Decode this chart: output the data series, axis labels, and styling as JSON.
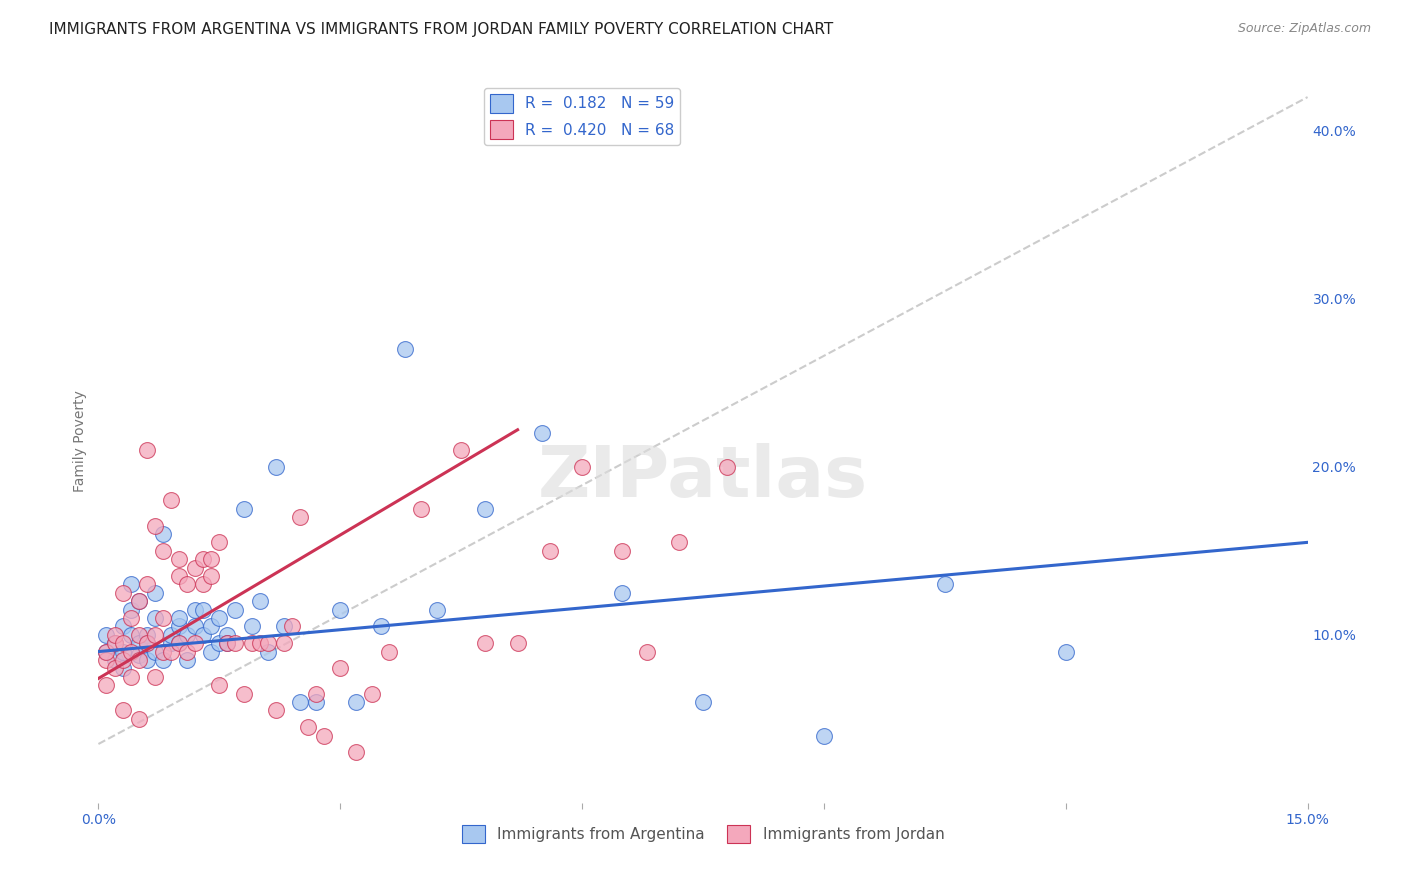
{
  "title": "IMMIGRANTS FROM ARGENTINA VS IMMIGRANTS FROM JORDAN FAMILY POVERTY CORRELATION CHART",
  "source": "Source: ZipAtlas.com",
  "ylabel": "Family Poverty",
  "ylabel_right_ticks": [
    "10.0%",
    "20.0%",
    "30.0%",
    "40.0%"
  ],
  "ylabel_right_vals": [
    0.1,
    0.2,
    0.3,
    0.4
  ],
  "xlim": [
    0.0,
    0.15
  ],
  "ylim": [
    0.0,
    0.43
  ],
  "R_argentina": 0.182,
  "N_argentina": 59,
  "R_jordan": 0.42,
  "N_jordan": 68,
  "color_argentina": "#A8C8F0",
  "color_jordan": "#F4A8BC",
  "trendline_color_argentina": "#3366CC",
  "trendline_color_jordan": "#CC3355",
  "scatter_argentina_x": [
    0.001,
    0.001,
    0.002,
    0.002,
    0.003,
    0.003,
    0.003,
    0.004,
    0.004,
    0.004,
    0.005,
    0.005,
    0.005,
    0.006,
    0.006,
    0.006,
    0.007,
    0.007,
    0.007,
    0.008,
    0.008,
    0.009,
    0.009,
    0.01,
    0.01,
    0.01,
    0.011,
    0.011,
    0.012,
    0.012,
    0.013,
    0.013,
    0.014,
    0.014,
    0.015,
    0.015,
    0.016,
    0.016,
    0.017,
    0.018,
    0.019,
    0.02,
    0.021,
    0.022,
    0.023,
    0.025,
    0.027,
    0.03,
    0.032,
    0.035,
    0.038,
    0.042,
    0.048,
    0.055,
    0.065,
    0.075,
    0.09,
    0.105,
    0.12
  ],
  "scatter_argentina_y": [
    0.09,
    0.1,
    0.095,
    0.085,
    0.105,
    0.09,
    0.08,
    0.1,
    0.115,
    0.13,
    0.095,
    0.12,
    0.088,
    0.1,
    0.085,
    0.095,
    0.11,
    0.125,
    0.09,
    0.16,
    0.085,
    0.095,
    0.1,
    0.105,
    0.11,
    0.095,
    0.1,
    0.085,
    0.105,
    0.115,
    0.1,
    0.115,
    0.105,
    0.09,
    0.095,
    0.11,
    0.1,
    0.095,
    0.115,
    0.175,
    0.105,
    0.12,
    0.09,
    0.2,
    0.105,
    0.06,
    0.06,
    0.115,
    0.06,
    0.105,
    0.27,
    0.115,
    0.175,
    0.22,
    0.125,
    0.06,
    0.04,
    0.13,
    0.09
  ],
  "scatter_jordan_x": [
    0.001,
    0.001,
    0.001,
    0.002,
    0.002,
    0.002,
    0.003,
    0.003,
    0.003,
    0.003,
    0.004,
    0.004,
    0.004,
    0.005,
    0.005,
    0.005,
    0.005,
    0.006,
    0.006,
    0.006,
    0.007,
    0.007,
    0.007,
    0.008,
    0.008,
    0.008,
    0.009,
    0.009,
    0.01,
    0.01,
    0.01,
    0.011,
    0.011,
    0.012,
    0.012,
    0.013,
    0.013,
    0.014,
    0.014,
    0.015,
    0.015,
    0.016,
    0.017,
    0.018,
    0.019,
    0.02,
    0.021,
    0.022,
    0.023,
    0.024,
    0.025,
    0.026,
    0.027,
    0.028,
    0.03,
    0.032,
    0.034,
    0.036,
    0.04,
    0.045,
    0.048,
    0.052,
    0.056,
    0.06,
    0.065,
    0.068,
    0.072,
    0.078
  ],
  "scatter_jordan_y": [
    0.085,
    0.09,
    0.07,
    0.08,
    0.095,
    0.1,
    0.125,
    0.085,
    0.095,
    0.055,
    0.09,
    0.11,
    0.075,
    0.12,
    0.1,
    0.085,
    0.05,
    0.21,
    0.13,
    0.095,
    0.165,
    0.1,
    0.075,
    0.15,
    0.11,
    0.09,
    0.18,
    0.09,
    0.145,
    0.135,
    0.095,
    0.13,
    0.09,
    0.14,
    0.095,
    0.145,
    0.13,
    0.145,
    0.135,
    0.155,
    0.07,
    0.095,
    0.095,
    0.065,
    0.095,
    0.095,
    0.095,
    0.055,
    0.095,
    0.105,
    0.17,
    0.045,
    0.065,
    0.04,
    0.08,
    0.03,
    0.065,
    0.09,
    0.175,
    0.21,
    0.095,
    0.095,
    0.15,
    0.2,
    0.15,
    0.09,
    0.155,
    0.2
  ],
  "trendline_argentina_x0": 0.0,
  "trendline_argentina_x1": 0.15,
  "trendline_argentina_y0": 0.09,
  "trendline_argentina_y1": 0.155,
  "trendline_jordan_x0": 0.0,
  "trendline_jordan_x1": 0.052,
  "trendline_jordan_y0": 0.074,
  "trendline_jordan_y1": 0.222,
  "trendline_dashed_x0": 0.0,
  "trendline_dashed_x1": 0.15,
  "trendline_dashed_y0": 0.035,
  "trendline_dashed_y1": 0.42,
  "grid_color": "#cccccc",
  "background_color": "#ffffff",
  "title_fontsize": 11,
  "axis_label_fontsize": 10,
  "tick_fontsize": 10,
  "legend_fontsize": 11,
  "bottom_legend": [
    "Immigrants from Argentina",
    "Immigrants from Jordan"
  ]
}
